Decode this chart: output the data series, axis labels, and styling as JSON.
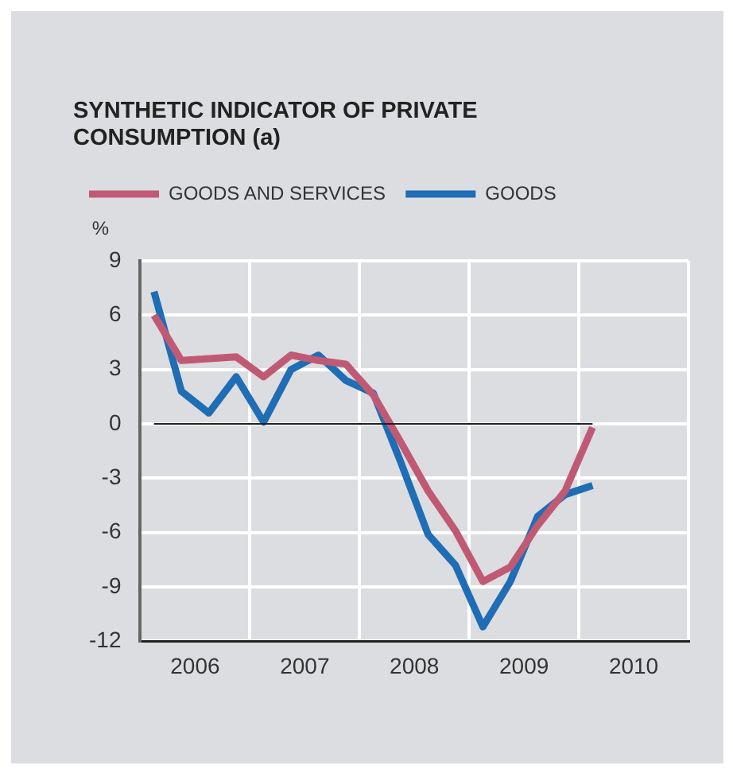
{
  "chart_data": {
    "type": "line",
    "title": "SYNTHETIC INDICATOR OF PRIVATE CONSUMPTION (a)",
    "ylabel": "%",
    "x": [
      2006.125,
      2006.375,
      2006.625,
      2006.875,
      2007.125,
      2007.375,
      2007.625,
      2007.875,
      2008.125,
      2008.375,
      2008.625,
      2008.875,
      2009.125,
      2009.375,
      2009.625,
      2009.875,
      2010.125
    ],
    "series": [
      {
        "name": "GOODS AND SERVICES",
        "color": "#c05a74",
        "values": [
          6.0,
          3.5,
          3.6,
          3.7,
          2.6,
          3.8,
          3.5,
          3.3,
          1.6,
          -1.0,
          -3.7,
          -5.9,
          -8.7,
          -7.9,
          -5.6,
          -3.7,
          -0.2
        ]
      },
      {
        "name": "GOODS",
        "color": "#1f6db5",
        "values": [
          7.3,
          1.8,
          0.6,
          2.6,
          0.1,
          3.0,
          3.8,
          2.4,
          1.7,
          -2.1,
          -6.1,
          -7.8,
          -11.2,
          -8.7,
          -5.1,
          -3.9,
          -3.4
        ]
      }
    ],
    "xlim": [
      2006,
      2011
    ],
    "xticks": [
      {
        "value": 2006.5,
        "label": "2006"
      },
      {
        "value": 2007,
        "label": null
      },
      {
        "value": 2007.5,
        "label": "2007"
      },
      {
        "value": 2008,
        "label": null
      },
      {
        "value": 2008.5,
        "label": "2008"
      },
      {
        "value": 2009,
        "label": null
      },
      {
        "value": 2009.5,
        "label": "2009"
      },
      {
        "value": 2010,
        "label": null
      },
      {
        "value": 2010.5,
        "label": "2010"
      },
      {
        "value": 2011,
        "label": null
      }
    ],
    "ylim": [
      -12,
      9
    ],
    "yticks": [
      -12,
      -9,
      -6,
      -3,
      0,
      3,
      6,
      9
    ],
    "ref_lines": [
      {
        "axis": "y",
        "value": 0,
        "color": "#222222"
      }
    ],
    "grid": true,
    "legend": "top left",
    "marker": "none",
    "line_style": "solid"
  }
}
